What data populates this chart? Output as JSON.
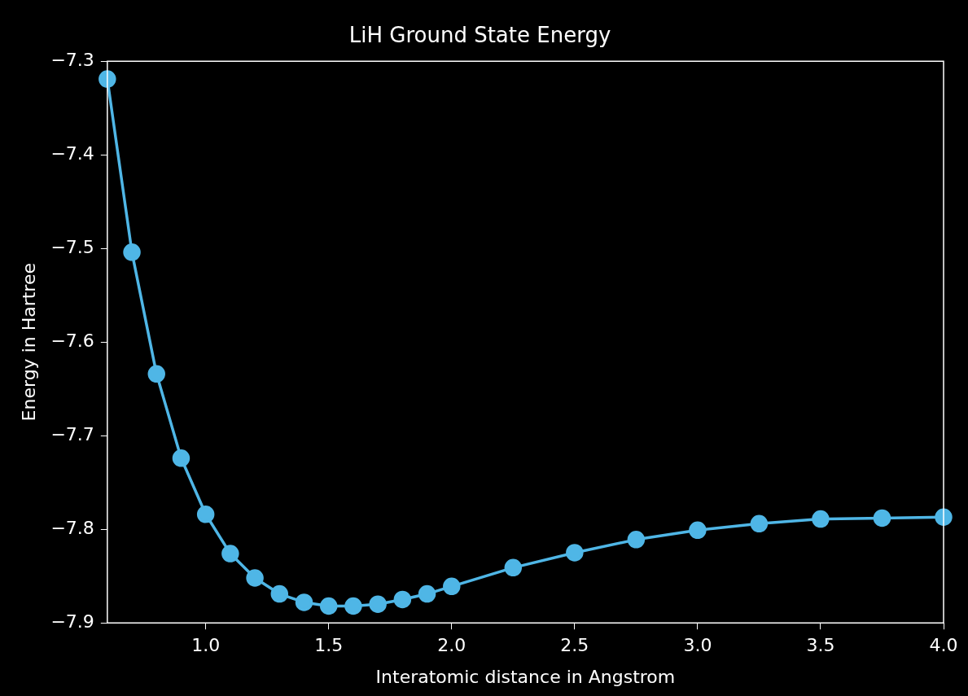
{
  "chart_data": {
    "type": "line",
    "title": "LiH Ground State Energy",
    "xlabel": "Interatomic distance in Angstrom",
    "ylabel": "Energy in Hartree",
    "x": [
      0.6,
      0.7,
      0.8,
      0.9,
      1.0,
      1.1,
      1.2,
      1.3,
      1.4,
      1.5,
      1.6,
      1.7,
      1.8,
      1.9,
      2.0,
      2.25,
      2.5,
      2.75,
      3.0,
      3.25,
      3.5,
      3.75,
      4.0
    ],
    "series": [
      {
        "color": "#4fb6e6",
        "values": [
          -7.319,
          -7.504,
          -7.634,
          -7.724,
          -7.784,
          -7.826,
          -7.852,
          -7.869,
          -7.878,
          -7.882,
          -7.882,
          -7.88,
          -7.875,
          -7.869,
          -7.861,
          -7.841,
          -7.825,
          -7.811,
          -7.801,
          -7.794,
          -7.789,
          -7.788,
          -7.787
        ]
      }
    ],
    "xlim": [
      0.6,
      4.0
    ],
    "ylim": [
      -7.9,
      -7.3
    ],
    "xticks": [
      {
        "value": 1.0,
        "label": "1.0"
      },
      {
        "value": 1.5,
        "label": "1.5"
      },
      {
        "value": 2.0,
        "label": "2.0"
      },
      {
        "value": 2.5,
        "label": "2.5"
      },
      {
        "value": 3.0,
        "label": "3.0"
      },
      {
        "value": 3.5,
        "label": "3.5"
      },
      {
        "value": 4.0,
        "label": "4.0"
      }
    ],
    "yticks": [
      {
        "value": -7.9,
        "label": "−7.9"
      },
      {
        "value": -7.8,
        "label": "−7.8"
      },
      {
        "value": -7.7,
        "label": "−7.7"
      },
      {
        "value": -7.6,
        "label": "−7.6"
      },
      {
        "value": -7.5,
        "label": "−7.5"
      },
      {
        "value": -7.4,
        "label": "−7.4"
      },
      {
        "value": -7.3,
        "label": "−7.3"
      }
    ],
    "marker": "circle",
    "line_style": "solid",
    "grid": false,
    "legend": false
  }
}
